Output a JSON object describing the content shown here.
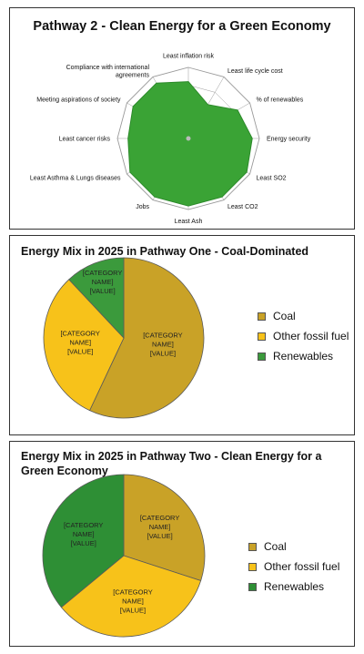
{
  "chart_data": [
    {
      "type": "radar",
      "title": "Pathway 2 - Clean Energy for a Green Economy",
      "axes": [
        "Least inflation risk",
        "Least life cycle cost",
        "% of renewables",
        "Energy security",
        "Least SO2",
        "Least CO2",
        "Least Ash",
        "Jobs",
        "Least Asthma & Lungs diseases",
        "Least cancer risks",
        "Meeting aspirations of society",
        "Compliance with international agreements"
      ],
      "axis_label_lines": [
        [
          "Least inflation risk"
        ],
        [
          "Least life cycle cost"
        ],
        [
          "% of renewables"
        ],
        [
          "Energy security"
        ],
        [
          "Least SO2"
        ],
        [
          "Least CO2"
        ],
        [
          "Least Ash"
        ],
        [
          "Jobs"
        ],
        [
          "Least Asthma & Lungs diseases"
        ],
        [
          "Least cancer risks"
        ],
        [
          "Meeting aspirations of society"
        ],
        [
          "Compliance with international",
          "agreements"
        ]
      ],
      "values": [
        0.8,
        0.55,
        0.8,
        0.9,
        0.95,
        0.95,
        0.95,
        0.95,
        0.95,
        0.85,
        0.9,
        0.9
      ],
      "scale_max": 1,
      "fill_color": "#3aa335",
      "grid_color": "#9a9a9a"
    },
    {
      "type": "pie",
      "title": "Energy Mix in 2025 in Pathway One - Coal-Dominated",
      "slices": [
        {
          "label": "Coal",
          "value": 57,
          "color": "#c9a227",
          "data_label": [
            "[CATEGORY",
            "NAME]",
            "[VALUE]"
          ]
        },
        {
          "label": "Other fossil fuel",
          "value": 31,
          "color": "#f7c21a",
          "data_label": [
            "[CATEGORY",
            "NAME]",
            "[VALUE]"
          ]
        },
        {
          "label": "Renewables",
          "value": 12,
          "color": "#3b9a3c",
          "data_label": [
            "[CATEGORY",
            "NAME]",
            "[VALUE]"
          ]
        }
      ],
      "legend": [
        "Coal",
        "Other fossil fuel",
        "Renewables"
      ],
      "legend_position": "right"
    },
    {
      "type": "pie",
      "title": "Energy Mix in 2025 in Pathway Two - Clean Energy for a Green Economy",
      "slices": [
        {
          "label": "Coal",
          "value": 30,
          "color": "#c9a227",
          "data_label": [
            "[CATEGORY",
            "NAME]",
            "[VALUE]"
          ]
        },
        {
          "label": "Other fossil fuel",
          "value": 34,
          "color": "#f7c21a",
          "data_label": [
            "[CATEGORY",
            "NAME]",
            "[VALUE]"
          ]
        },
        {
          "label": "Renewables",
          "value": 36,
          "color": "#2e8f35",
          "data_label": [
            "[CATEGORY",
            "NAME]",
            "[VALUE]"
          ]
        }
      ],
      "legend": [
        "Coal",
        "Other fossil fuel",
        "Renewables"
      ],
      "legend_position": "right"
    }
  ]
}
